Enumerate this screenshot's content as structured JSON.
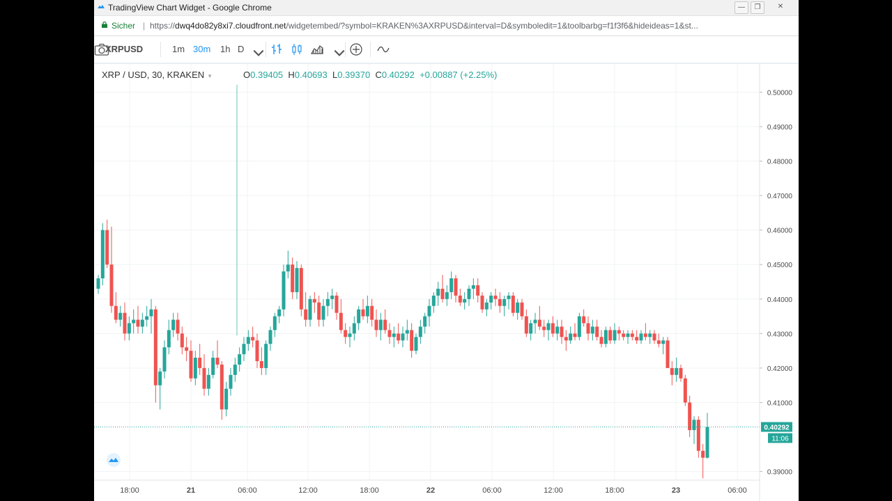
{
  "window": {
    "title": "TradingView Chart Widget - Google Chrome",
    "controls": [
      "—",
      "❐",
      "✕"
    ]
  },
  "address": {
    "secure_label": "Sicher",
    "separator": "|",
    "scheme": "https://",
    "host": "dwq4do82y8xi7.cloudfront.net",
    "path": "/widgetembed/?symbol=KRAKEN%3AXRPUSD&interval=D&symboledit=1&toolbarbg=f1f3f6&hideideas=1&st..."
  },
  "toolbar": {
    "symbol": "XRPUSD",
    "intervals": [
      {
        "label": "1m",
        "active": false
      },
      {
        "label": "30m",
        "active": true
      },
      {
        "label": "1h",
        "active": false
      },
      {
        "label": "D",
        "active": false
      }
    ],
    "icons": [
      "chevron-down-icon",
      "bar-chart-icon",
      "candles-icon",
      "area-chart-icon",
      "add-indicator-icon",
      "compare-icon",
      "camera-icon"
    ]
  },
  "legend": {
    "title": "XRP / USD, 30, KRAKEN",
    "o_label": "O",
    "o_value": "0.39405",
    "h_label": "H",
    "h_value": "0.40693",
    "l_label": "L",
    "l_value": "0.39370",
    "c_label": "C",
    "c_value": "0.40292",
    "change": "+0.00887 (+2.25%)"
  },
  "colors": {
    "up": "#26a69a",
    "down": "#ef5350",
    "price_line": "#26a69a",
    "grid": "#f1f3f6",
    "axis_text": "#4a4a4a"
  },
  "chart_data": {
    "type": "candlestick",
    "price_axis": {
      "ticks": [
        "0.50000",
        "0.49000",
        "0.48000",
        "0.47000",
        "0.46000",
        "0.45000",
        "0.44000",
        "0.43000",
        "0.42000",
        "0.41000",
        "0.39000"
      ],
      "ylim": [
        0.3875,
        0.5025
      ]
    },
    "time_axis": {
      "ticks": [
        {
          "label": "18:00",
          "bold": false
        },
        {
          "label": "21",
          "bold": true
        },
        {
          "label": "06:00",
          "bold": false
        },
        {
          "label": "12:00",
          "bold": false
        },
        {
          "label": "18:00",
          "bold": false
        },
        {
          "label": "22",
          "bold": true
        },
        {
          "label": "06:00",
          "bold": false
        },
        {
          "label": "12:00",
          "bold": false
        },
        {
          "label": "18:00",
          "bold": false
        },
        {
          "label": "23",
          "bold": true
        },
        {
          "label": "06:00",
          "bold": false
        }
      ]
    },
    "last_price": "0.40292",
    "last_price_value": 0.40292,
    "countdown": "11:06",
    "candles": [
      [
        0.443,
        0.447,
        0.4415,
        0.446
      ],
      [
        0.446,
        0.462,
        0.444,
        0.46
      ],
      [
        0.46,
        0.463,
        0.449,
        0.45
      ],
      [
        0.45,
        0.461,
        0.436,
        0.438
      ],
      [
        0.438,
        0.442,
        0.433,
        0.434
      ],
      [
        0.434,
        0.438,
        0.432,
        0.436
      ],
      [
        0.436,
        0.439,
        0.428,
        0.43
      ],
      [
        0.43,
        0.435,
        0.428,
        0.433
      ],
      [
        0.433,
        0.437,
        0.43,
        0.434
      ],
      [
        0.434,
        0.438,
        0.43,
        0.432
      ],
      [
        0.432,
        0.436,
        0.43,
        0.434
      ],
      [
        0.434,
        0.438,
        0.432,
        0.435
      ],
      [
        0.435,
        0.44,
        0.43,
        0.437
      ],
      [
        0.437,
        0.438,
        0.41,
        0.415
      ],
      [
        0.415,
        0.42,
        0.408,
        0.419
      ],
      [
        0.419,
        0.428,
        0.417,
        0.426
      ],
      [
        0.426,
        0.434,
        0.424,
        0.431
      ],
      [
        0.431,
        0.436,
        0.429,
        0.434
      ],
      [
        0.434,
        0.436,
        0.428,
        0.43
      ],
      [
        0.43,
        0.432,
        0.424,
        0.426
      ],
      [
        0.426,
        0.429,
        0.422,
        0.425
      ],
      [
        0.425,
        0.428,
        0.416,
        0.417
      ],
      [
        0.417,
        0.425,
        0.415,
        0.423
      ],
      [
        0.423,
        0.427,
        0.418,
        0.42
      ],
      [
        0.42,
        0.424,
        0.412,
        0.414
      ],
      [
        0.414,
        0.42,
        0.412,
        0.418
      ],
      [
        0.418,
        0.425,
        0.417,
        0.423
      ],
      [
        0.423,
        0.428,
        0.42,
        0.421
      ],
      [
        0.421,
        0.422,
        0.405,
        0.408
      ],
      [
        0.408,
        0.416,
        0.406,
        0.414
      ],
      [
        0.414,
        0.42,
        0.412,
        0.418
      ],
      [
        0.418,
        0.423,
        0.416,
        0.421
      ],
      [
        0.421,
        0.426,
        0.419,
        0.424
      ],
      [
        0.424,
        0.429,
        0.422,
        0.427
      ],
      [
        0.427,
        0.431,
        0.425,
        0.429
      ],
      [
        0.429,
        0.432,
        0.426,
        0.428
      ],
      [
        0.428,
        0.43,
        0.42,
        0.422
      ],
      [
        0.422,
        0.426,
        0.418,
        0.42
      ],
      [
        0.42,
        0.428,
        0.418,
        0.427
      ],
      [
        0.427,
        0.432,
        0.425,
        0.431
      ],
      [
        0.431,
        0.436,
        0.429,
        0.435
      ],
      [
        0.435,
        0.438,
        0.433,
        0.437
      ],
      [
        0.437,
        0.45,
        0.435,
        0.448
      ],
      [
        0.448,
        0.454,
        0.446,
        0.45
      ],
      [
        0.45,
        0.452,
        0.44,
        0.442
      ],
      [
        0.442,
        0.451,
        0.44,
        0.449
      ],
      [
        0.449,
        0.45,
        0.435,
        0.437
      ],
      [
        0.437,
        0.442,
        0.432,
        0.434
      ],
      [
        0.434,
        0.441,
        0.432,
        0.44
      ],
      [
        0.44,
        0.442,
        0.436,
        0.439
      ],
      [
        0.439,
        0.441,
        0.432,
        0.434
      ],
      [
        0.434,
        0.44,
        0.432,
        0.438
      ],
      [
        0.438,
        0.442,
        0.435,
        0.44
      ],
      [
        0.44,
        0.443,
        0.437,
        0.441
      ],
      [
        0.441,
        0.442,
        0.434,
        0.436
      ],
      [
        0.436,
        0.44,
        0.43,
        0.431
      ],
      [
        0.431,
        0.433,
        0.427,
        0.429
      ],
      [
        0.429,
        0.432,
        0.426,
        0.43
      ],
      [
        0.43,
        0.435,
        0.428,
        0.433
      ],
      [
        0.433,
        0.438,
        0.431,
        0.437
      ],
      [
        0.437,
        0.44,
        0.434,
        0.435
      ],
      [
        0.435,
        0.441,
        0.433,
        0.438
      ],
      [
        0.438,
        0.44,
        0.432,
        0.434
      ],
      [
        0.434,
        0.437,
        0.429,
        0.431
      ],
      [
        0.431,
        0.436,
        0.428,
        0.434
      ],
      [
        0.434,
        0.437,
        0.43,
        0.431
      ],
      [
        0.431,
        0.433,
        0.427,
        0.429
      ],
      [
        0.429,
        0.432,
        0.426,
        0.43
      ],
      [
        0.43,
        0.433,
        0.427,
        0.428
      ],
      [
        0.428,
        0.432,
        0.426,
        0.43
      ],
      [
        0.43,
        0.434,
        0.428,
        0.431
      ],
      [
        0.431,
        0.433,
        0.423,
        0.425
      ],
      [
        0.425,
        0.43,
        0.424,
        0.429
      ],
      [
        0.429,
        0.434,
        0.427,
        0.432
      ],
      [
        0.432,
        0.436,
        0.43,
        0.435
      ],
      [
        0.435,
        0.44,
        0.432,
        0.438
      ],
      [
        0.438,
        0.442,
        0.436,
        0.441
      ],
      [
        0.441,
        0.445,
        0.438,
        0.443
      ],
      [
        0.443,
        0.447,
        0.439,
        0.44
      ],
      [
        0.44,
        0.444,
        0.438,
        0.442
      ],
      [
        0.442,
        0.448,
        0.44,
        0.446
      ],
      [
        0.446,
        0.447,
        0.439,
        0.441
      ],
      [
        0.441,
        0.443,
        0.438,
        0.439
      ],
      [
        0.439,
        0.442,
        0.437,
        0.44
      ],
      [
        0.44,
        0.444,
        0.438,
        0.443
      ],
      [
        0.443,
        0.446,
        0.44,
        0.444
      ],
      [
        0.444,
        0.446,
        0.439,
        0.441
      ],
      [
        0.441,
        0.442,
        0.436,
        0.437
      ],
      [
        0.437,
        0.44,
        0.435,
        0.439
      ],
      [
        0.439,
        0.442,
        0.437,
        0.441
      ],
      [
        0.441,
        0.443,
        0.438,
        0.44
      ],
      [
        0.44,
        0.442,
        0.436,
        0.438
      ],
      [
        0.438,
        0.441,
        0.435,
        0.44
      ],
      [
        0.44,
        0.442,
        0.437,
        0.441
      ],
      [
        0.441,
        0.442,
        0.435,
        0.436
      ],
      [
        0.436,
        0.44,
        0.434,
        0.439
      ],
      [
        0.439,
        0.44,
        0.434,
        0.435
      ],
      [
        0.435,
        0.437,
        0.429,
        0.43
      ],
      [
        0.43,
        0.434,
        0.428,
        0.433
      ],
      [
        0.433,
        0.436,
        0.43,
        0.434
      ],
      [
        0.434,
        0.438,
        0.431,
        0.432
      ],
      [
        0.432,
        0.434,
        0.429,
        0.431
      ],
      [
        0.431,
        0.434,
        0.428,
        0.433
      ],
      [
        0.433,
        0.435,
        0.429,
        0.43
      ],
      [
        0.43,
        0.434,
        0.428,
        0.432
      ],
      [
        0.432,
        0.434,
        0.427,
        0.429
      ],
      [
        0.429,
        0.431,
        0.425,
        0.428
      ],
      [
        0.428,
        0.432,
        0.427,
        0.43
      ],
      [
        0.43,
        0.433,
        0.428,
        0.429
      ],
      [
        0.429,
        0.436,
        0.428,
        0.435
      ],
      [
        0.435,
        0.437,
        0.432,
        0.433
      ],
      [
        0.433,
        0.435,
        0.428,
        0.43
      ],
      [
        0.43,
        0.434,
        0.428,
        0.432
      ],
      [
        0.432,
        0.434,
        0.428,
        0.429
      ],
      [
        0.429,
        0.431,
        0.426,
        0.427
      ],
      [
        0.427,
        0.432,
        0.426,
        0.431
      ],
      [
        0.431,
        0.432,
        0.427,
        0.428
      ],
      [
        0.428,
        0.433,
        0.427,
        0.431
      ],
      [
        0.431,
        0.432,
        0.428,
        0.43
      ],
      [
        0.43,
        0.431,
        0.428,
        0.429
      ],
      [
        0.429,
        0.431,
        0.427,
        0.43
      ],
      [
        0.43,
        0.431,
        0.428,
        0.429
      ],
      [
        0.429,
        0.431,
        0.427,
        0.428
      ],
      [
        0.428,
        0.431,
        0.427,
        0.43
      ],
      [
        0.43,
        0.433,
        0.428,
        0.429
      ],
      [
        0.429,
        0.431,
        0.427,
        0.43
      ],
      [
        0.43,
        0.431,
        0.427,
        0.428
      ],
      [
        0.428,
        0.43,
        0.426,
        0.427
      ],
      [
        0.427,
        0.429,
        0.424,
        0.428
      ],
      [
        0.428,
        0.429,
        0.42,
        0.42
      ],
      [
        0.42,
        0.422,
        0.415,
        0.418
      ],
      [
        0.418,
        0.423,
        0.416,
        0.42
      ],
      [
        0.42,
        0.421,
        0.416,
        0.417
      ],
      [
        0.417,
        0.418,
        0.409,
        0.41
      ],
      [
        0.41,
        0.412,
        0.4,
        0.402
      ],
      [
        0.402,
        0.406,
        0.398,
        0.405
      ],
      [
        0.405,
        0.406,
        0.394,
        0.396
      ],
      [
        0.396,
        0.398,
        0.388,
        0.394
      ],
      [
        0.394,
        0.407,
        0.3937,
        0.4029
      ]
    ]
  }
}
